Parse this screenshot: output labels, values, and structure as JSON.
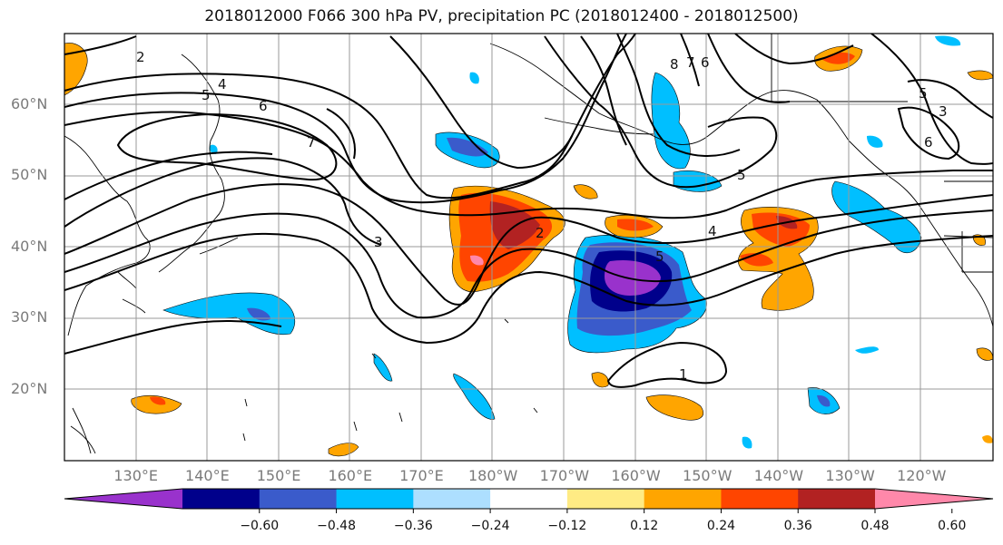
{
  "title": "2018012000 F066 300 hPa PV, precipitation PC (2018012400 - 2018012500)",
  "map": {
    "lat_labels": [
      {
        "text": "60°N",
        "lat": 60
      },
      {
        "text": "50°N",
        "lat": 50
      },
      {
        "text": "40°N",
        "lat": 40
      },
      {
        "text": "30°N",
        "lat": 30
      },
      {
        "text": "20°N",
        "lat": 20
      }
    ],
    "lon_labels": [
      {
        "text": "130°E",
        "lon": 130
      },
      {
        "text": "140°E",
        "lon": 140
      },
      {
        "text": "150°E",
        "lon": 150
      },
      {
        "text": "160°E",
        "lon": 160
      },
      {
        "text": "170°E",
        "lon": 170
      },
      {
        "text": "180°W",
        "lon": 180
      },
      {
        "text": "170°W",
        "lon": 190
      },
      {
        "text": "160°W",
        "lon": 200
      },
      {
        "text": "150°W",
        "lon": 210
      },
      {
        "text": "140°W",
        "lon": 220
      },
      {
        "text": "130°W",
        "lon": 230
      },
      {
        "text": "120°W",
        "lon": 240
      }
    ],
    "contour_labels": [
      "2",
      "4",
      "5",
      "6",
      "7",
      "3",
      "2",
      "5",
      "4",
      "5",
      "1",
      "8",
      "7",
      "6",
      "6",
      "5",
      "3"
    ]
  },
  "colorbar": {
    "colors": [
      "#9932CC",
      "#00008B",
      "#3A5BCB",
      "#00BFFF",
      "#ADDFFF",
      "#FFFFFF",
      "#FFEB84",
      "#FFA500",
      "#FF4500",
      "#B22222",
      "#FF88AA"
    ],
    "ticks": [
      "−0.60",
      "−0.48",
      "−0.36",
      "−0.24",
      "−0.12",
      "0.12",
      "0.24",
      "0.36",
      "0.48",
      "0.60"
    ],
    "tick_values": [
      -0.6,
      -0.48,
      -0.36,
      -0.24,
      -0.12,
      0.12,
      0.24,
      0.36,
      0.48,
      0.6
    ]
  }
}
